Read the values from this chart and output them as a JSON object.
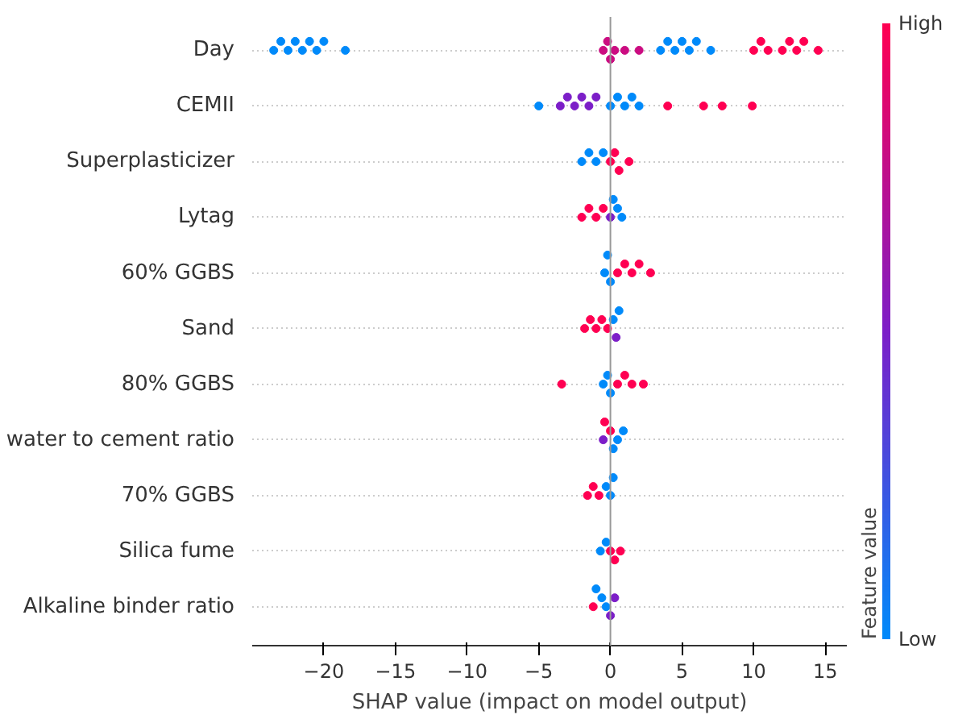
{
  "chart_data": {
    "type": "scatter",
    "orientation": "horizontal",
    "xlabel": "SHAP value (impact on model output)",
    "clabel": "Feature value",
    "categories": [
      "Day",
      "CEMII",
      "Superplasticizer",
      "Lytag",
      "60% GGBS",
      "Sand",
      "80% GGBS",
      "water to cement ratio",
      "70% GGBS",
      "Silica fume",
      "Alkaline binder ratio"
    ],
    "series": [
      {
        "x": [
          "Day",
          "Day",
          "Day",
          "Day",
          "Day",
          "Day",
          "Day",
          "Day",
          "Day",
          "Day",
          "Day",
          "Day",
          "Day",
          "Day",
          "Day",
          "Day",
          "Day",
          "Day",
          "Day",
          "Day",
          "Day",
          "Day",
          "Day",
          "Day",
          "Day",
          "Day",
          "Day",
          "Day",
          "Day",
          "Day"
        ],
        "values": [
          -23.5,
          -23,
          -22.5,
          -22,
          -21.5,
          -21,
          -20.5,
          -20,
          -18.5,
          -0.5,
          -0.2,
          0,
          0.3,
          1,
          2,
          3.5,
          4,
          4.5,
          5,
          5.5,
          6,
          7,
          10,
          10.5,
          11,
          12,
          12.5,
          13,
          13.5,
          14.5
        ],
        "cvalues": [
          0,
          0,
          0,
          0,
          0,
          0,
          0,
          0,
          0,
          0.8,
          0.8,
          0.8,
          0.8,
          0.8,
          0.8,
          0,
          0,
          0,
          0,
          0,
          0,
          0,
          1,
          1,
          1,
          1,
          1,
          1,
          1,
          1
        ],
        "colors": [
          "#008afa",
          "#008afa",
          "#008afa",
          "#008afa",
          "#008afa",
          "#008afa",
          "#008afa",
          "#008afa",
          "#008afa",
          "#cb0c81",
          "#cb0c81",
          "#cb0c81",
          "#cb0c81",
          "#cb0c81",
          "#cb0c81",
          "#008afa",
          "#008afa",
          "#008afa",
          "#008afa",
          "#008afa",
          "#008afa",
          "#008afa",
          "#ff0052",
          "#ff0052",
          "#ff0052",
          "#ff0052",
          "#ff0052",
          "#ff0052",
          "#ff0052",
          "#ff0052"
        ]
      },
      {
        "x": [
          "CEMII",
          "CEMII",
          "CEMII",
          "CEMII",
          "CEMII",
          "CEMII",
          "CEMII",
          "CEMII",
          "CEMII",
          "CEMII",
          "CEMII",
          "CEMII",
          "CEMII",
          "CEMII",
          "CEMII",
          "CEMII"
        ],
        "values": [
          -5,
          -3.5,
          -3,
          -2.5,
          -2,
          -1.5,
          -1,
          0,
          0.5,
          1,
          1.5,
          2,
          4,
          6.5,
          7.8,
          9.9
        ],
        "cvalues": [
          0,
          0.5,
          0.5,
          0.5,
          0.5,
          0.5,
          0.5,
          0,
          0,
          0,
          0,
          0,
          1,
          1,
          1,
          1
        ],
        "colors": [
          "#008afa",
          "#7c1ec8",
          "#7c1ec8",
          "#7c1ec8",
          "#7c1ec8",
          "#7c1ec8",
          "#7c1ec8",
          "#008afa",
          "#008afa",
          "#008afa",
          "#008afa",
          "#008afa",
          "#ff0052",
          "#ff0052",
          "#ff0052",
          "#ff0052"
        ]
      },
      {
        "x": [
          "Superplasticizer",
          "Superplasticizer",
          "Superplasticizer",
          "Superplasticizer",
          "Superplasticizer",
          "Superplasticizer",
          "Superplasticizer",
          "Superplasticizer"
        ],
        "values": [
          -2,
          -1.5,
          -1,
          -0.5,
          0,
          0.3,
          0.6,
          1.3
        ],
        "cvalues": [
          0,
          0,
          0,
          0,
          1,
          1,
          1,
          1
        ],
        "colors": [
          "#008afa",
          "#008afa",
          "#008afa",
          "#008afa",
          "#ff0052",
          "#ff0052",
          "#ff0052",
          "#ff0052"
        ]
      },
      {
        "x": [
          "Lytag",
          "Lytag",
          "Lytag",
          "Lytag",
          "Lytag",
          "Lytag",
          "Lytag",
          "Lytag"
        ],
        "values": [
          -2,
          -1.5,
          -1,
          -0.5,
          0,
          0.2,
          0.5,
          0.8
        ],
        "cvalues": [
          1,
          1,
          1,
          1,
          0.5,
          0,
          0,
          0
        ],
        "colors": [
          "#ff0052",
          "#ff0052",
          "#ff0052",
          "#ff0052",
          "#7c1ec8",
          "#008afa",
          "#008afa",
          "#008afa"
        ]
      },
      {
        "x": [
          "60% GGBS",
          "60% GGBS",
          "60% GGBS",
          "60% GGBS",
          "60% GGBS",
          "60% GGBS",
          "60% GGBS",
          "60% GGBS"
        ],
        "values": [
          -0.4,
          -0.2,
          0,
          0.5,
          1,
          1.5,
          2,
          2.8
        ],
        "cvalues": [
          0,
          0,
          0,
          1,
          1,
          1,
          1,
          1
        ],
        "colors": [
          "#008afa",
          "#008afa",
          "#008afa",
          "#ff0052",
          "#ff0052",
          "#ff0052",
          "#ff0052",
          "#ff0052"
        ]
      },
      {
        "x": [
          "Sand",
          "Sand",
          "Sand",
          "Sand",
          "Sand",
          "Sand",
          "Sand",
          "Sand"
        ],
        "values": [
          -1.8,
          -1.4,
          -1,
          -0.6,
          -0.2,
          0.2,
          0.4,
          0.6
        ],
        "cvalues": [
          1,
          1,
          1,
          1,
          1,
          0,
          0.5,
          0
        ],
        "colors": [
          "#ff0052",
          "#ff0052",
          "#ff0052",
          "#ff0052",
          "#ff0052",
          "#008afa",
          "#7c1ec8",
          "#008afa"
        ]
      },
      {
        "x": [
          "80% GGBS",
          "80% GGBS",
          "80% GGBS",
          "80% GGBS",
          "80% GGBS",
          "80% GGBS",
          "80% GGBS",
          "80% GGBS"
        ],
        "values": [
          -3.4,
          -0.5,
          -0.2,
          0,
          0.5,
          1,
          1.5,
          2.3
        ],
        "cvalues": [
          1,
          0,
          0,
          0,
          1,
          1,
          1,
          1
        ],
        "colors": [
          "#ff0052",
          "#008afa",
          "#008afa",
          "#008afa",
          "#ff0052",
          "#ff0052",
          "#ff0052",
          "#ff0052"
        ]
      },
      {
        "x": [
          "water to cement ratio",
          "water to cement ratio",
          "water to cement ratio",
          "water to cement ratio",
          "water to cement ratio",
          "water to cement ratio"
        ],
        "values": [
          -0.5,
          -0.4,
          0,
          0.2,
          0.5,
          0.9
        ],
        "cvalues": [
          0.5,
          1,
          1,
          0,
          0,
          0
        ],
        "colors": [
          "#7c1ec8",
          "#ff0052",
          "#ff0052",
          "#008afa",
          "#008afa",
          "#008afa"
        ]
      },
      {
        "x": [
          "70% GGBS",
          "70% GGBS",
          "70% GGBS",
          "70% GGBS",
          "70% GGBS",
          "70% GGBS"
        ],
        "values": [
          -1.6,
          -1.2,
          -0.8,
          -0.3,
          0,
          0.2
        ],
        "cvalues": [
          1,
          1,
          1,
          0,
          0,
          0
        ],
        "colors": [
          "#ff0052",
          "#ff0052",
          "#ff0052",
          "#008afa",
          "#008afa",
          "#008afa"
        ]
      },
      {
        "x": [
          "Silica fume",
          "Silica fume",
          "Silica fume",
          "Silica fume",
          "Silica fume"
        ],
        "values": [
          -0.7,
          -0.3,
          0,
          0.3,
          0.7
        ],
        "cvalues": [
          0,
          0,
          1,
          1,
          1
        ],
        "colors": [
          "#008afa",
          "#008afa",
          "#ff0052",
          "#ff0052",
          "#ff0052"
        ]
      },
      {
        "x": [
          "Alkaline binder ratio",
          "Alkaline binder ratio",
          "Alkaline binder ratio",
          "Alkaline binder ratio",
          "Alkaline binder ratio",
          "Alkaline binder ratio"
        ],
        "values": [
          -1.2,
          -1,
          -0.6,
          -0.3,
          0,
          0.3
        ],
        "cvalues": [
          1,
          0,
          0,
          0,
          0.5,
          0.5
        ],
        "colors": [
          "#ff0052",
          "#008afa",
          "#008afa",
          "#008afa",
          "#7c1ec8",
          "#7c1ec8"
        ]
      }
    ],
    "xlim": [
      -25,
      16.5
    ],
    "xticks": [
      {
        "value": -20,
        "label": "−20"
      },
      {
        "value": -15,
        "label": "−15"
      },
      {
        "value": -10,
        "label": "−10"
      },
      {
        "value": -5,
        "label": "−5"
      },
      0,
      5,
      10,
      15
    ],
    "clim": [
      0,
      1
    ],
    "cticks": [
      {
        "value": 0,
        "label": "Low"
      },
      {
        "value": 1,
        "label": "High"
      }
    ],
    "ref_lines": [
      {
        "axis": "x",
        "value": 0,
        "color": "#999999"
      }
    ],
    "grid": "y",
    "marker": "circle"
  }
}
